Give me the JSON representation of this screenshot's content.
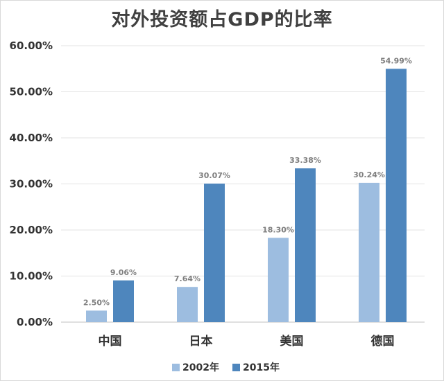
{
  "chart_data": {
    "type": "bar",
    "title": "对外投资额占GDP的比率",
    "categories": [
      "中国",
      "日本",
      "美国",
      "德国"
    ],
    "series": [
      {
        "name": "2002年",
        "values": [
          2.5,
          7.64,
          18.3,
          30.24
        ],
        "labels": [
          "2.50%",
          "7.64%",
          "18.30%",
          "30.24%"
        ],
        "color": "#9dbde0"
      },
      {
        "name": "2015年",
        "values": [
          9.06,
          30.07,
          33.38,
          54.99
        ],
        "labels": [
          "9.06%",
          "30.07%",
          "33.38%",
          "54.99%"
        ],
        "color": "#4e86bd"
      }
    ],
    "ylim": [
      0,
      60
    ],
    "yticks": [
      0,
      10,
      20,
      30,
      40,
      50,
      60
    ],
    "ytick_labels": [
      "0.00%",
      "10.00%",
      "20.00%",
      "30.00%",
      "40.00%",
      "50.00%",
      "60.00%"
    ],
    "xlabel": "",
    "ylabel": "",
    "grid": true,
    "legend_position": "bottom",
    "gridline_color": "#e3e3e3"
  }
}
